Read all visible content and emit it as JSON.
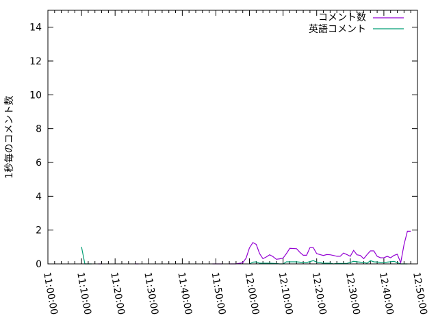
{
  "chart_data": {
    "type": "line",
    "title": "",
    "xlabel": "",
    "ylabel": "1秒毎のコメント数",
    "xlim": [
      "11:00:00",
      "12:50:00"
    ],
    "ylim": [
      0,
      15
    ],
    "x_ticks": [
      "11:00:00",
      "11:10:00",
      "11:20:00",
      "11:30:00",
      "11:40:00",
      "11:50:00",
      "12:00:00",
      "12:10:00",
      "12:20:00",
      "12:30:00",
      "12:40:00",
      "12:50:00"
    ],
    "y_ticks": [
      "0",
      "2",
      "4",
      "6",
      "8",
      "10",
      "12",
      "14"
    ],
    "grid": false,
    "legend_position": "top-right",
    "series": [
      {
        "name": "コメント数",
        "color": "#9400d3",
        "points": [
          [
            "11:15",
            0
          ],
          [
            "11:16",
            0
          ],
          null,
          [
            "11:26",
            0
          ],
          [
            "11:27",
            0
          ],
          null,
          [
            "11:49",
            0
          ],
          [
            "11:50",
            0
          ],
          [
            "11:51",
            0
          ],
          [
            "11:52",
            0
          ],
          null,
          [
            "11:54",
            0
          ],
          [
            "11:55",
            0
          ],
          [
            "11:56",
            0
          ],
          [
            "11:58",
            0.07
          ],
          [
            "11:59",
            0.34
          ],
          [
            "12:00",
            0.95
          ],
          [
            "12:01",
            1.26
          ],
          [
            "12:02",
            1.15
          ],
          [
            "12:03",
            0.61
          ],
          [
            "12:04",
            0.31
          ],
          [
            "12:05",
            0.41
          ],
          [
            "12:06",
            0.54
          ],
          [
            "12:07",
            0.43
          ],
          [
            "12:08",
            0.27
          ],
          [
            "12:09",
            0.3
          ],
          [
            "12:10",
            0.34
          ],
          [
            "12:11",
            0.61
          ],
          [
            "12:12",
            0.92
          ],
          [
            "12:14",
            0.9
          ],
          [
            "12:15",
            0.68
          ],
          [
            "12:16",
            0.51
          ],
          [
            "12:17",
            0.51
          ],
          [
            "12:18",
            0.96
          ],
          [
            "12:19",
            0.96
          ],
          [
            "12:20",
            0.61
          ],
          [
            "12:21",
            0.55
          ],
          [
            "12:22",
            0.5
          ],
          [
            "12:23",
            0.55
          ],
          [
            "12:24",
            0.54
          ],
          [
            "12:25",
            0.5
          ],
          [
            "12:26",
            0.45
          ],
          [
            "12:27",
            0.45
          ],
          [
            "12:28",
            0.64
          ],
          [
            "12:29",
            0.55
          ],
          [
            "12:30",
            0.45
          ],
          [
            "12:31",
            0.8
          ],
          [
            "12:32",
            0.54
          ],
          [
            "12:33",
            0.5
          ],
          [
            "12:34",
            0.31
          ],
          [
            "12:35",
            0.55
          ],
          [
            "12:36",
            0.77
          ],
          [
            "12:37",
            0.77
          ],
          [
            "12:38",
            0.45
          ],
          [
            "12:39",
            0.36
          ],
          [
            "12:40",
            0.36
          ],
          [
            "12:41",
            0.45
          ],
          [
            "12:42",
            0.36
          ],
          [
            "12:43",
            0.5
          ],
          [
            "12:44",
            0.57
          ],
          [
            "12:45",
            0.07
          ],
          [
            "12:46",
            1.15
          ],
          [
            "12:47",
            1.93
          ],
          [
            "12:48",
            1.93
          ]
        ]
      },
      {
        "name": "英語コメント",
        "color": "#009e73",
        "points": [
          [
            "11:10",
            1
          ],
          [
            "11:11",
            0
          ],
          [
            "11:12",
            0
          ],
          [
            "11:13",
            0
          ],
          null,
          [
            "12:00",
            0
          ],
          [
            "12:01",
            0.1
          ],
          [
            "12:02",
            0.12
          ],
          [
            "12:03",
            0.04
          ],
          [
            "12:04",
            0.04
          ],
          [
            "12:06",
            0.04
          ],
          [
            "12:08",
            0.02
          ],
          [
            "12:09",
            0
          ],
          [
            "12:10",
            0
          ],
          [
            "12:11",
            0.12
          ],
          [
            "12:13",
            0.12
          ],
          [
            "12:14",
            0.12
          ],
          [
            "12:16",
            0.08
          ],
          [
            "12:17",
            0.08
          ],
          [
            "12:19",
            0.19
          ],
          [
            "12:20",
            0.11
          ],
          [
            "12:22",
            0.04
          ],
          [
            "12:24",
            0.04
          ],
          [
            "12:25",
            0
          ],
          [
            "12:26",
            0.03
          ],
          [
            "12:29",
            0.03
          ],
          [
            "12:31",
            0.15
          ],
          [
            "12:32",
            0.12
          ],
          [
            "12:34",
            0.08
          ],
          [
            "12:35",
            0.04
          ],
          [
            "12:36",
            0.19
          ],
          [
            "12:37",
            0.12
          ],
          [
            "12:40",
            0.08
          ],
          [
            "12:43",
            0.15
          ],
          [
            "12:44",
            0.08
          ],
          [
            "12:45",
            0
          ],
          [
            "12:47",
            0
          ]
        ]
      }
    ]
  }
}
